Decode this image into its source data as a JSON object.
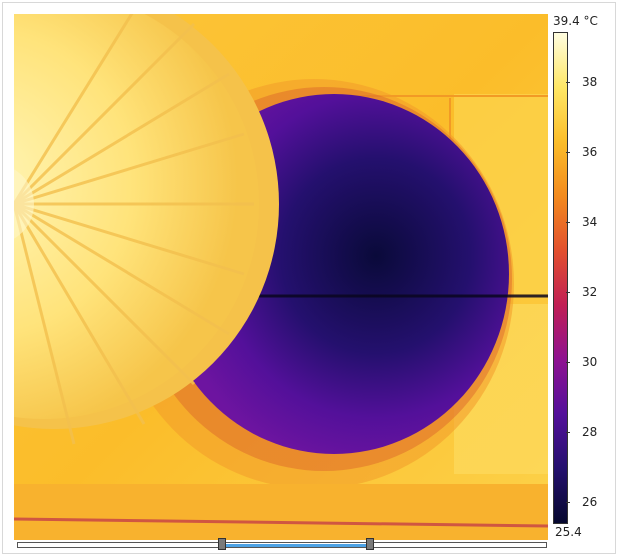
{
  "colorbar": {
    "max_label": "39.4 °C",
    "min_label": "25.4",
    "ticks": [
      "38",
      "36",
      "34",
      "32",
      "30",
      "28",
      "26"
    ],
    "palette": [
      "#fffde0",
      "#ffe766",
      "#fbbd2a",
      "#f28a1e",
      "#e2502e",
      "#c01f55",
      "#8e1291",
      "#53109a",
      "#24106e",
      "#06082e"
    ]
  },
  "range_slider": {
    "handles": [
      "range-handle-min",
      "range-handle-max"
    ]
  }
}
